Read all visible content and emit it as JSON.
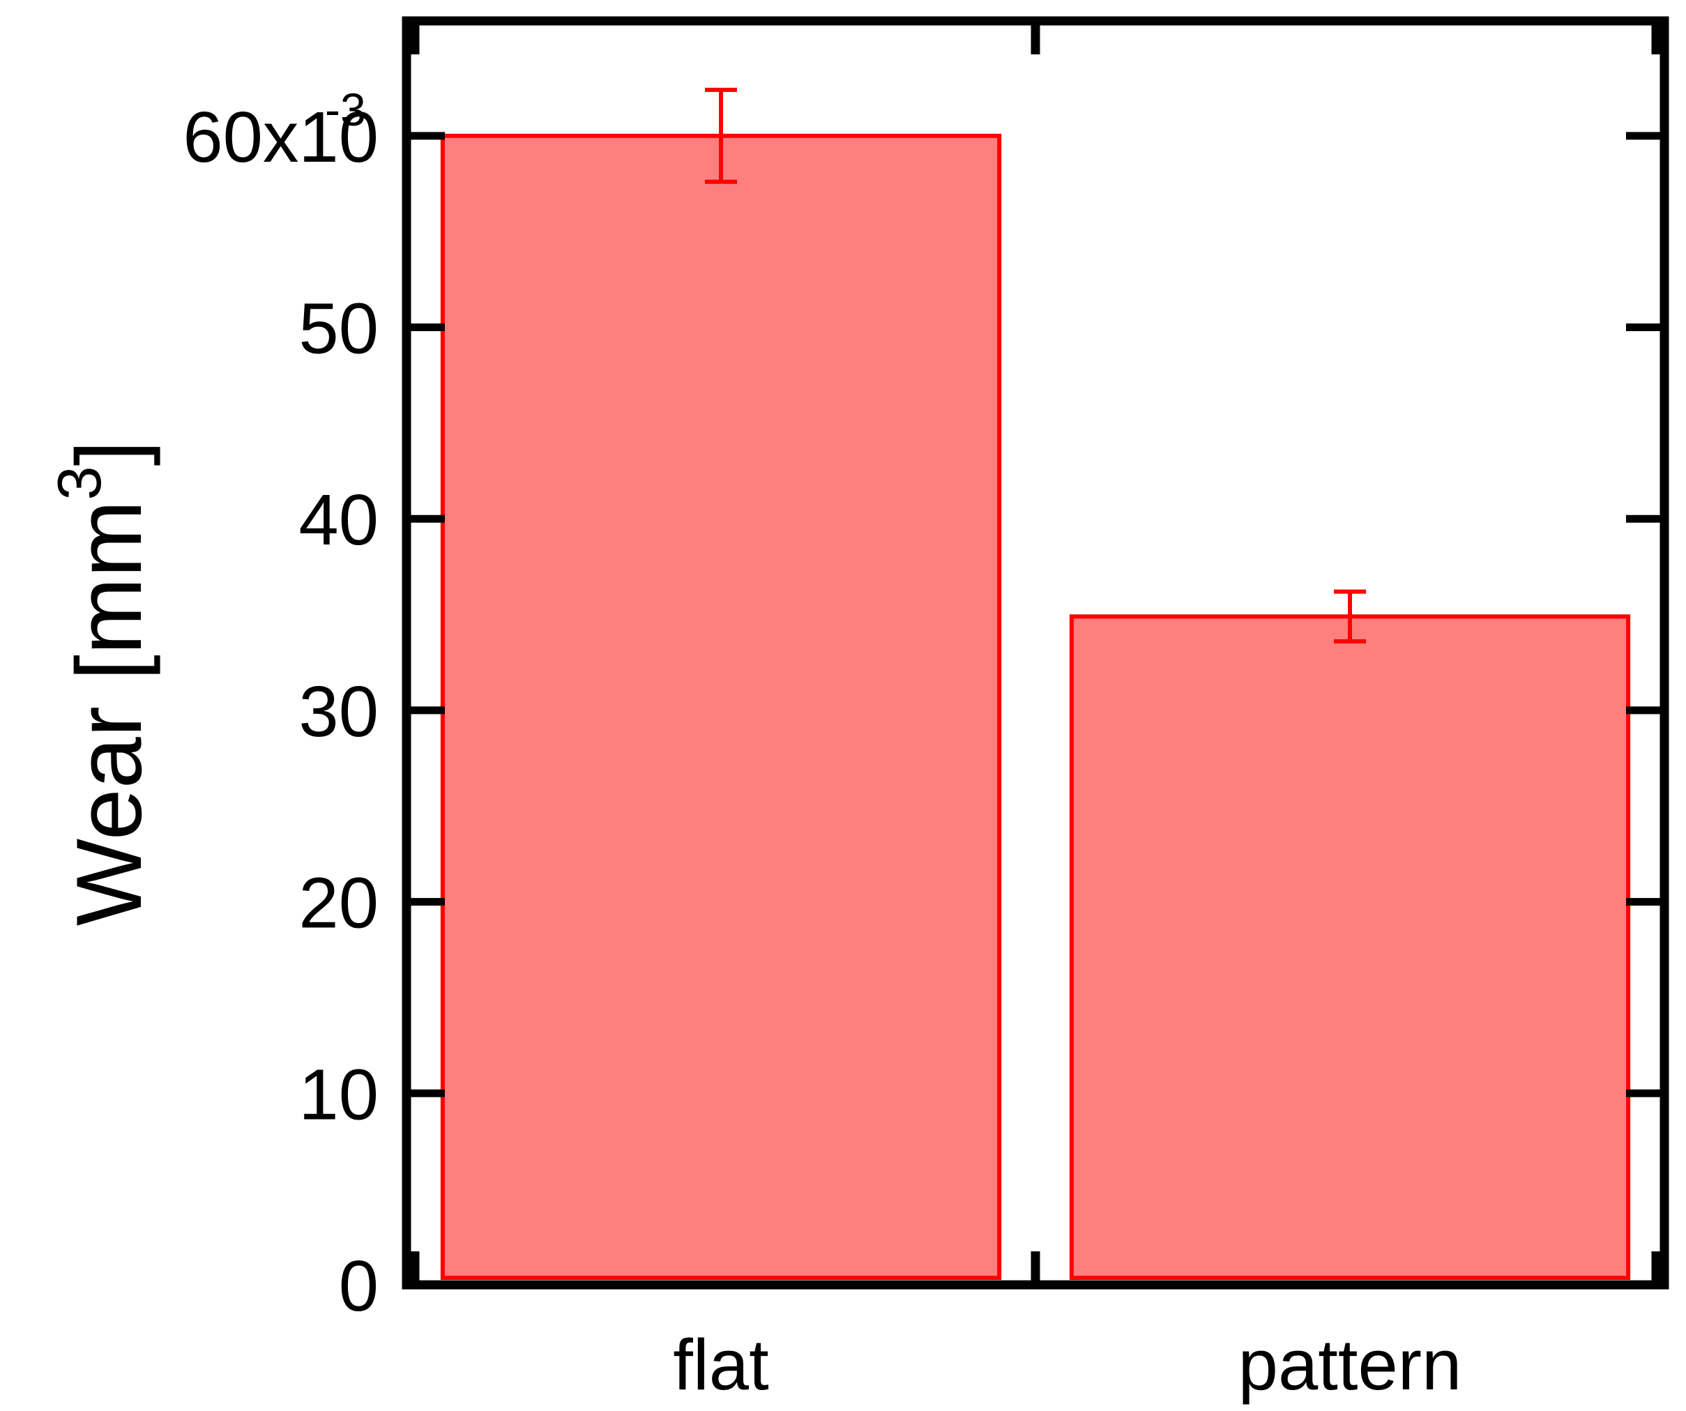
{
  "chart_data": {
    "type": "bar",
    "categories": [
      "flat",
      "pattern"
    ],
    "series": [
      {
        "values": [
          0.06,
          0.0349
        ],
        "errors": [
          0.0024,
          0.0013
        ]
      }
    ],
    "ylabel_main": "Wear  [mm",
    "ylabel_sup": "3",
    "ylabel_close": "]",
    "xlabel": "",
    "ylim": [
      0,
      0.066
    ],
    "yticks": [
      0,
      0.01,
      0.02,
      0.03,
      0.04,
      0.05,
      0.06
    ],
    "ytick_labels": [
      "0",
      "10",
      "20",
      "30",
      "40",
      "50",
      "60x10"
    ],
    "ytick_top_exponent": "-3",
    "grid": false,
    "legend": false,
    "bar_fill": "#ff7f7f",
    "bar_edge": "#ff0000",
    "error_color": "#ff0000",
    "axis_color": "#000000"
  }
}
